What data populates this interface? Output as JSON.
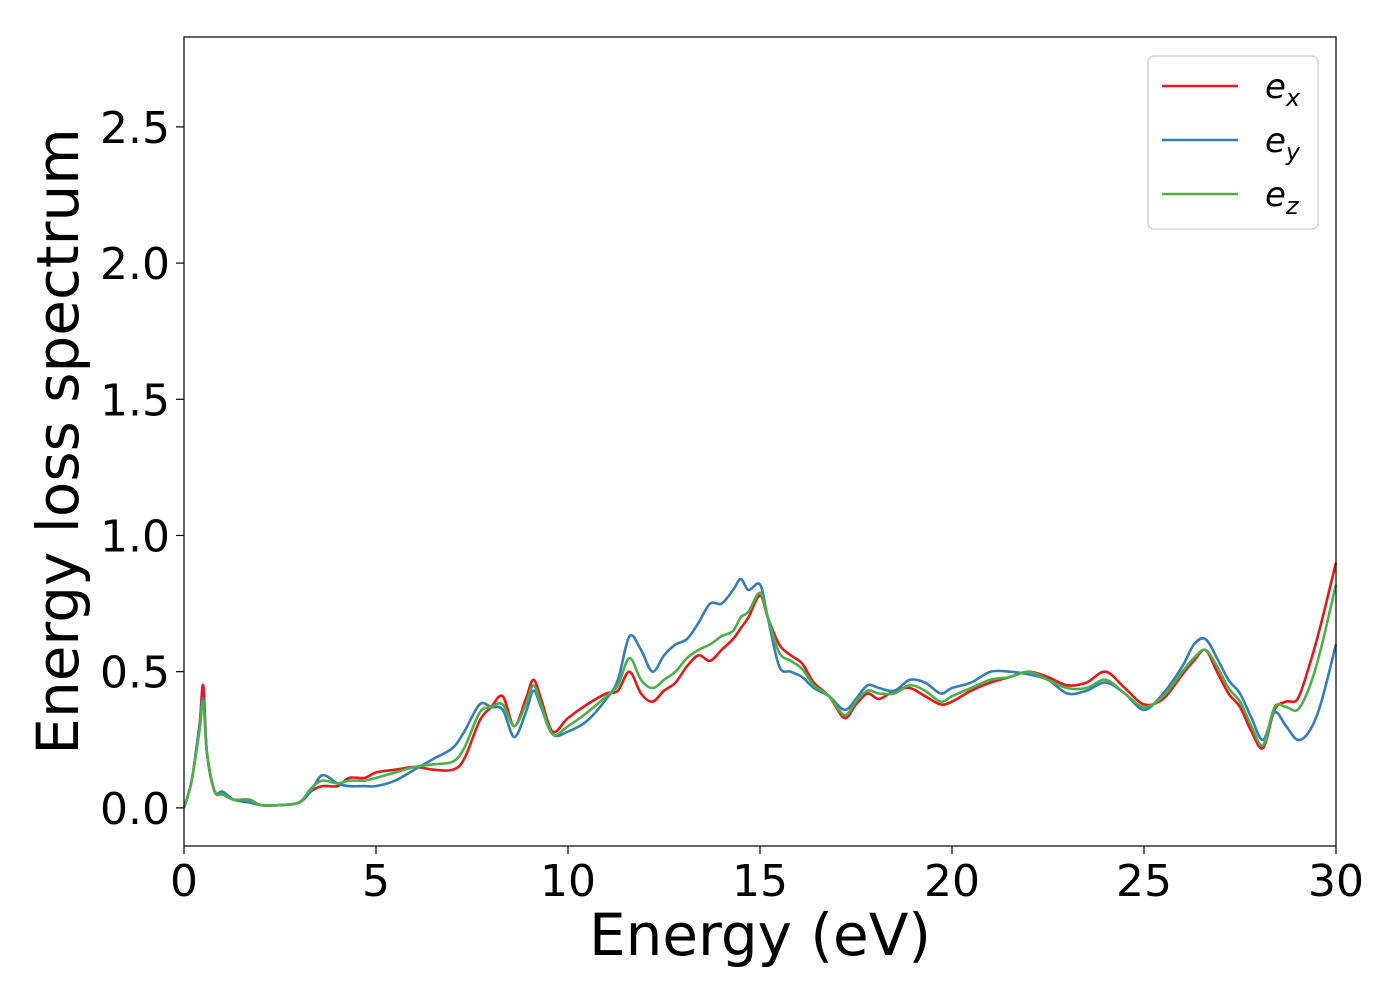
{
  "chart_data": {
    "type": "line",
    "xlabel": "Energy (eV)",
    "ylabel": "Energy loss spectrum",
    "xlim": [
      0,
      30
    ],
    "ylim": [
      -0.14,
      2.83
    ],
    "xticks": [
      0,
      5,
      10,
      15,
      20,
      25,
      30
    ],
    "xtick_labels": [
      "0",
      "5",
      "10",
      "15",
      "20",
      "25",
      "30"
    ],
    "yticks": [
      0.0,
      0.5,
      1.0,
      1.5,
      2.0,
      2.5
    ],
    "ytick_labels": [
      "0.0",
      "0.5",
      "1.0",
      "1.5",
      "2.0",
      "2.5"
    ],
    "grid": false,
    "legend_position": "top-right",
    "x": [
      0,
      0.2,
      0.4,
      0.5,
      0.6,
      0.8,
      1.0,
      1.3,
      1.7,
      2.0,
      2.5,
      3.0,
      3.3,
      3.6,
      4.0,
      4.3,
      4.7,
      5.0,
      5.5,
      6.0,
      6.5,
      7.0,
      7.3,
      7.7,
      8.0,
      8.3,
      8.6,
      8.9,
      9.1,
      9.3,
      9.6,
      10.0,
      10.5,
      11.0,
      11.3,
      11.6,
      11.9,
      12.2,
      12.5,
      12.8,
      13.1,
      13.4,
      13.7,
      14.0,
      14.3,
      14.5,
      14.7,
      15.0,
      15.2,
      15.5,
      15.8,
      16.1,
      16.4,
      16.8,
      17.2,
      17.5,
      17.8,
      18.1,
      18.5,
      18.9,
      19.3,
      19.7,
      20.0,
      20.5,
      21.0,
      21.5,
      22.0,
      22.5,
      23.0,
      23.5,
      24.0,
      24.5,
      25.0,
      25.5,
      26.0,
      26.3,
      26.6,
      26.9,
      27.2,
      27.5,
      27.8,
      28.1,
      28.4,
      28.7,
      29.0,
      29.3,
      29.6,
      30.0
    ],
    "series": [
      {
        "name": "e_x",
        "legend_main": "e",
        "legend_sub": "x",
        "color": "#e41a1c",
        "values": [
          0.0,
          0.1,
          0.3,
          0.45,
          0.2,
          0.06,
          0.05,
          0.03,
          0.03,
          0.01,
          0.01,
          0.02,
          0.06,
          0.08,
          0.08,
          0.11,
          0.11,
          0.13,
          0.14,
          0.15,
          0.14,
          0.14,
          0.18,
          0.32,
          0.37,
          0.41,
          0.3,
          0.4,
          0.47,
          0.4,
          0.28,
          0.33,
          0.38,
          0.42,
          0.43,
          0.5,
          0.42,
          0.39,
          0.43,
          0.46,
          0.52,
          0.56,
          0.54,
          0.58,
          0.62,
          0.66,
          0.7,
          0.78,
          0.7,
          0.6,
          0.56,
          0.53,
          0.46,
          0.41,
          0.33,
          0.38,
          0.42,
          0.4,
          0.43,
          0.44,
          0.41,
          0.38,
          0.39,
          0.43,
          0.46,
          0.48,
          0.5,
          0.48,
          0.45,
          0.46,
          0.5,
          0.44,
          0.38,
          0.4,
          0.49,
          0.54,
          0.58,
          0.5,
          0.42,
          0.37,
          0.28,
          0.22,
          0.36,
          0.39,
          0.4,
          0.52,
          0.67,
          0.9
        ]
      },
      {
        "name": "e_y",
        "legend_main": "e",
        "legend_sub": "y",
        "color": "#377eb8",
        "values": [
          0.0,
          0.1,
          0.3,
          0.4,
          0.2,
          0.06,
          0.06,
          0.03,
          0.02,
          0.01,
          0.01,
          0.02,
          0.06,
          0.12,
          0.09,
          0.08,
          0.08,
          0.08,
          0.1,
          0.14,
          0.18,
          0.22,
          0.28,
          0.38,
          0.37,
          0.36,
          0.26,
          0.35,
          0.43,
          0.37,
          0.27,
          0.28,
          0.32,
          0.4,
          0.47,
          0.63,
          0.58,
          0.5,
          0.56,
          0.6,
          0.62,
          0.68,
          0.75,
          0.75,
          0.8,
          0.84,
          0.8,
          0.82,
          0.7,
          0.52,
          0.5,
          0.48,
          0.44,
          0.41,
          0.36,
          0.4,
          0.45,
          0.44,
          0.43,
          0.47,
          0.46,
          0.42,
          0.44,
          0.46,
          0.5,
          0.5,
          0.49,
          0.47,
          0.42,
          0.43,
          0.46,
          0.42,
          0.36,
          0.42,
          0.52,
          0.6,
          0.62,
          0.55,
          0.47,
          0.42,
          0.33,
          0.25,
          0.35,
          0.3,
          0.25,
          0.28,
          0.38,
          0.6
        ]
      },
      {
        "name": "e_z",
        "legend_main": "e",
        "legend_sub": "z",
        "color": "#4daf4a",
        "values": [
          0.0,
          0.1,
          0.28,
          0.39,
          0.2,
          0.06,
          0.05,
          0.03,
          0.03,
          0.01,
          0.01,
          0.02,
          0.07,
          0.1,
          0.09,
          0.1,
          0.1,
          0.11,
          0.13,
          0.15,
          0.16,
          0.17,
          0.22,
          0.35,
          0.37,
          0.38,
          0.3,
          0.38,
          0.45,
          0.38,
          0.27,
          0.3,
          0.35,
          0.41,
          0.45,
          0.55,
          0.47,
          0.44,
          0.47,
          0.5,
          0.55,
          0.58,
          0.6,
          0.63,
          0.65,
          0.7,
          0.72,
          0.79,
          0.7,
          0.57,
          0.54,
          0.51,
          0.45,
          0.41,
          0.34,
          0.39,
          0.43,
          0.42,
          0.42,
          0.45,
          0.43,
          0.39,
          0.41,
          0.44,
          0.47,
          0.48,
          0.5,
          0.47,
          0.44,
          0.44,
          0.47,
          0.42,
          0.37,
          0.41,
          0.5,
          0.55,
          0.58,
          0.52,
          0.44,
          0.39,
          0.3,
          0.23,
          0.37,
          0.37,
          0.36,
          0.44,
          0.58,
          0.82
        ]
      }
    ]
  }
}
